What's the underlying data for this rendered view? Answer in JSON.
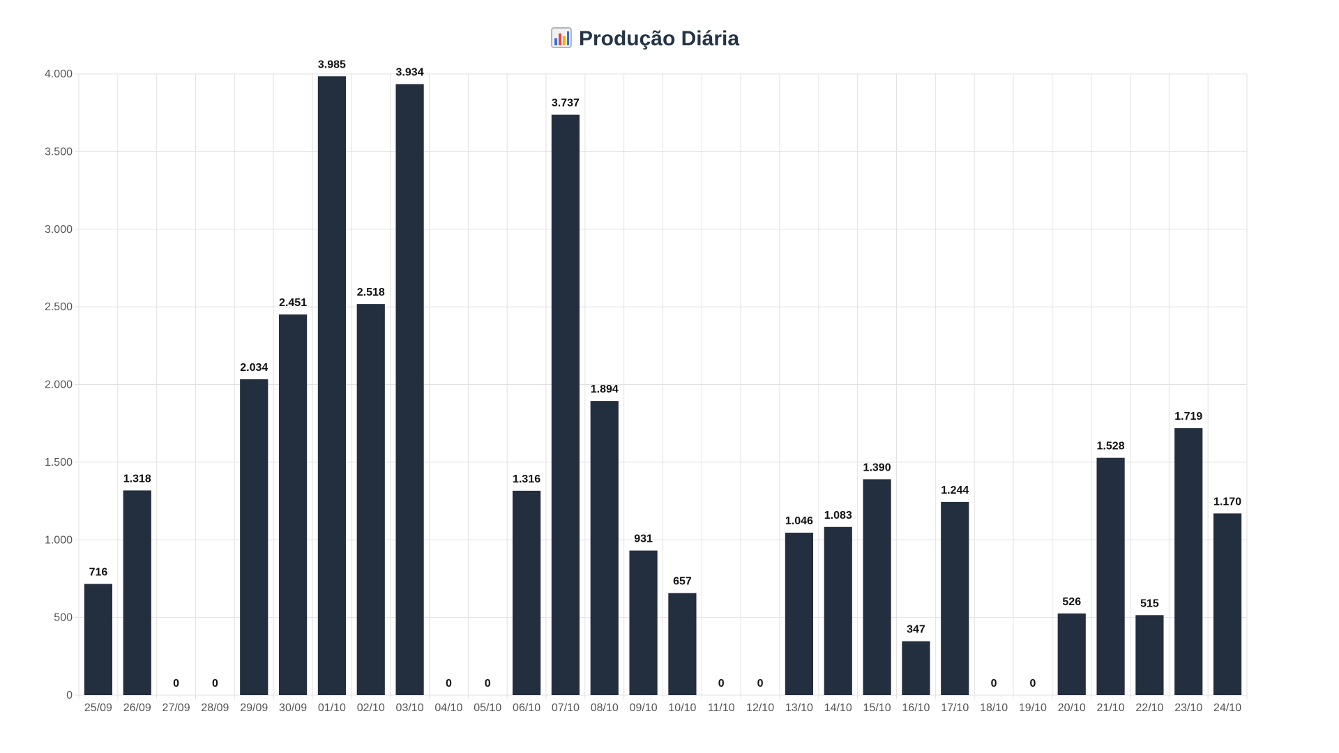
{
  "chart_data": {
    "type": "bar",
    "title": "Produção Diária",
    "title_icon": "bar-chart-icon",
    "xlabel": "",
    "ylabel": "",
    "categories": [
      "25/09",
      "26/09",
      "27/09",
      "28/09",
      "29/09",
      "30/09",
      "01/10",
      "02/10",
      "03/10",
      "04/10",
      "05/10",
      "06/10",
      "07/10",
      "08/10",
      "09/10",
      "10/10",
      "11/10",
      "12/10",
      "13/10",
      "14/10",
      "15/10",
      "16/10",
      "17/10",
      "18/10",
      "19/10",
      "20/10",
      "21/10",
      "22/10",
      "23/10",
      "24/10"
    ],
    "values": [
      716,
      1318,
      0,
      0,
      2034,
      2451,
      3985,
      2518,
      3934,
      0,
      0,
      1316,
      3737,
      1894,
      931,
      657,
      0,
      0,
      1046,
      1083,
      1390,
      347,
      1244,
      0,
      0,
      526,
      1528,
      515,
      1719,
      1170
    ],
    "data_labels": [
      "716",
      "1.318",
      "0",
      "0",
      "2.034",
      "2.451",
      "3.985",
      "2.518",
      "3.934",
      "0",
      "0",
      "1.316",
      "3.737",
      "1.894",
      "931",
      "657",
      "0",
      "0",
      "1.046",
      "1.083",
      "1.390",
      "347",
      "1.244",
      "0",
      "0",
      "526",
      "1.528",
      "515",
      "1.719",
      "1.170"
    ],
    "ylim": [
      0,
      4000
    ],
    "yticks": [
      0,
      500,
      1000,
      1500,
      2000,
      2500,
      3000,
      3500,
      4000
    ],
    "ytick_labels": [
      "0",
      "500",
      "1.000",
      "1.500",
      "2.000",
      "2.500",
      "3.000",
      "3.500",
      "4.000"
    ],
    "grid": true,
    "legend": "none",
    "bar_color": "#232f3e",
    "grid_color": "#e2e2e2"
  }
}
